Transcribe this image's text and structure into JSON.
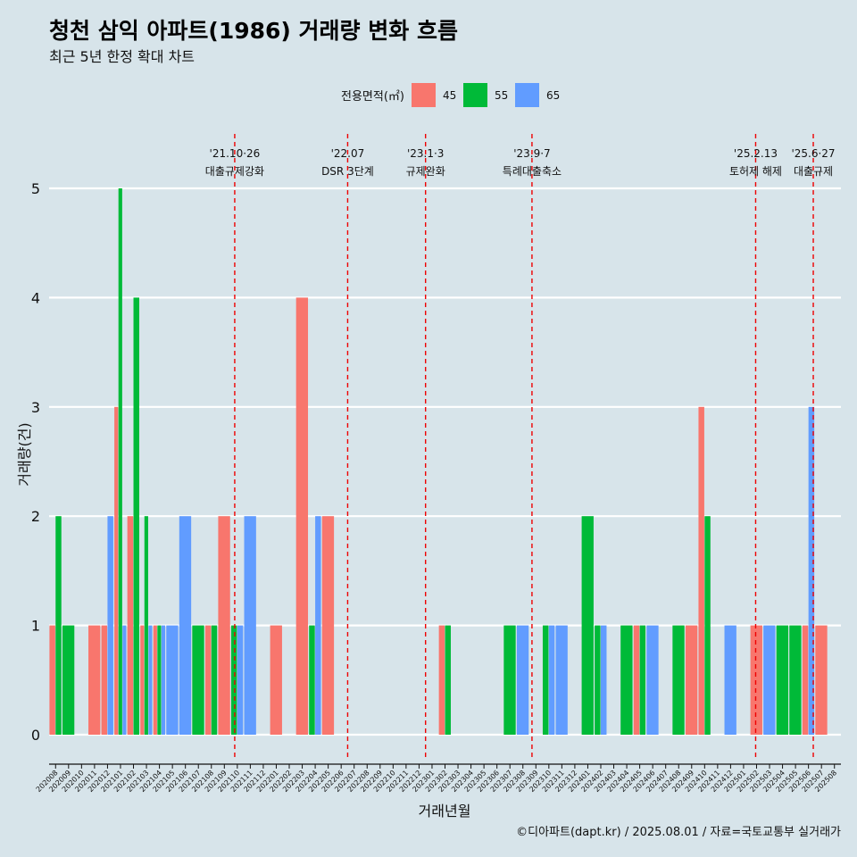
{
  "chart_data": {
    "type": "bar",
    "title": "청천 삼익 아파트(1986) 거래량 변화 흐름",
    "subtitle": "최근 5년 한정 확대 차트",
    "xlabel": "거래년월",
    "ylabel": "거래량(건)",
    "caption": "©디아파트(dapt.kr) / 2025.08.01 / 자료=국토교통부 실거래가",
    "legend_title": "전용면적(㎡)",
    "legend_position": "top",
    "grid": true,
    "ylim": [
      0,
      5
    ],
    "yticks": [
      "0",
      "1",
      "2",
      "3",
      "4",
      "5"
    ],
    "series_colors": [
      "#F8766D",
      "#00BA38",
      "#619CFF"
    ],
    "categories": [
      "202008",
      "202009",
      "202010",
      "202011",
      "202012",
      "202101",
      "202102",
      "202103",
      "202104",
      "202105",
      "202106",
      "202107",
      "202108",
      "202109",
      "202110",
      "202111",
      "202112",
      "202201",
      "202202",
      "202203",
      "202204",
      "202205",
      "202206",
      "202207",
      "202208",
      "202209",
      "202210",
      "202211",
      "202212",
      "202301",
      "202302",
      "202303",
      "202304",
      "202305",
      "202306",
      "202307",
      "202308",
      "202309",
      "202310",
      "202311",
      "202312",
      "202401",
      "202402",
      "202403",
      "202404",
      "202405",
      "202406",
      "202407",
      "202408",
      "202409",
      "202410",
      "202411",
      "202412",
      "202501",
      "202502",
      "202503",
      "202504",
      "202505",
      "202506",
      "202507",
      "202508"
    ],
    "series": [
      {
        "name": "45",
        "values": [
          1,
          0,
          0,
          1,
          1,
          3,
          2,
          1,
          1,
          0,
          0,
          0,
          1,
          2,
          0,
          0,
          0,
          1,
          0,
          4,
          0,
          2,
          0,
          0,
          0,
          0,
          0,
          0,
          0,
          0,
          1,
          0,
          0,
          0,
          0,
          0,
          0,
          0,
          0,
          0,
          0,
          0,
          0,
          0,
          0,
          1,
          0,
          0,
          0,
          1,
          3,
          0,
          0,
          0,
          1,
          0,
          0,
          0,
          1,
          1,
          0
        ]
      },
      {
        "name": "55",
        "values": [
          2,
          1,
          0,
          0,
          0,
          5,
          4,
          2,
          1,
          0,
          0,
          1,
          1,
          0,
          1,
          0,
          0,
          0,
          0,
          0,
          1,
          0,
          0,
          0,
          0,
          0,
          0,
          0,
          0,
          0,
          1,
          0,
          0,
          0,
          0,
          1,
          0,
          0,
          1,
          0,
          0,
          2,
          1,
          0,
          1,
          1,
          0,
          0,
          1,
          0,
          2,
          0,
          0,
          0,
          0,
          0,
          1,
          1,
          0,
          0,
          0
        ]
      },
      {
        "name": "65",
        "values": [
          0,
          0,
          0,
          0,
          2,
          1,
          0,
          1,
          1,
          1,
          2,
          0,
          0,
          0,
          1,
          2,
          0,
          0,
          0,
          0,
          2,
          0,
          0,
          0,
          0,
          0,
          0,
          0,
          0,
          0,
          0,
          0,
          0,
          0,
          0,
          0,
          1,
          0,
          1,
          1,
          0,
          0,
          1,
          0,
          0,
          0,
          1,
          0,
          0,
          0,
          0,
          0,
          1,
          0,
          0,
          1,
          0,
          0,
          3,
          0,
          0
        ]
      }
    ],
    "events": [
      {
        "label": "'21.10·26",
        "sublabel": "대출규제강화",
        "month": "202110",
        "pos": 0.3
      },
      {
        "label": "'22.07",
        "sublabel": "DSR 3단계",
        "month": "202207",
        "pos": 0.0
      },
      {
        "label": "'23.1·3",
        "sublabel": "규제완화",
        "month": "202301",
        "pos": 0.0
      },
      {
        "label": "'23.9·7",
        "sublabel": "특례대출축소",
        "month": "202309",
        "pos": 0.2
      },
      {
        "label": "'25.2.13",
        "sublabel": "토허제 해제",
        "month": "202502",
        "pos": 0.43
      },
      {
        "label": "'25.6·27",
        "sublabel": "대출규제",
        "month": "202506",
        "pos": 0.87
      }
    ]
  }
}
